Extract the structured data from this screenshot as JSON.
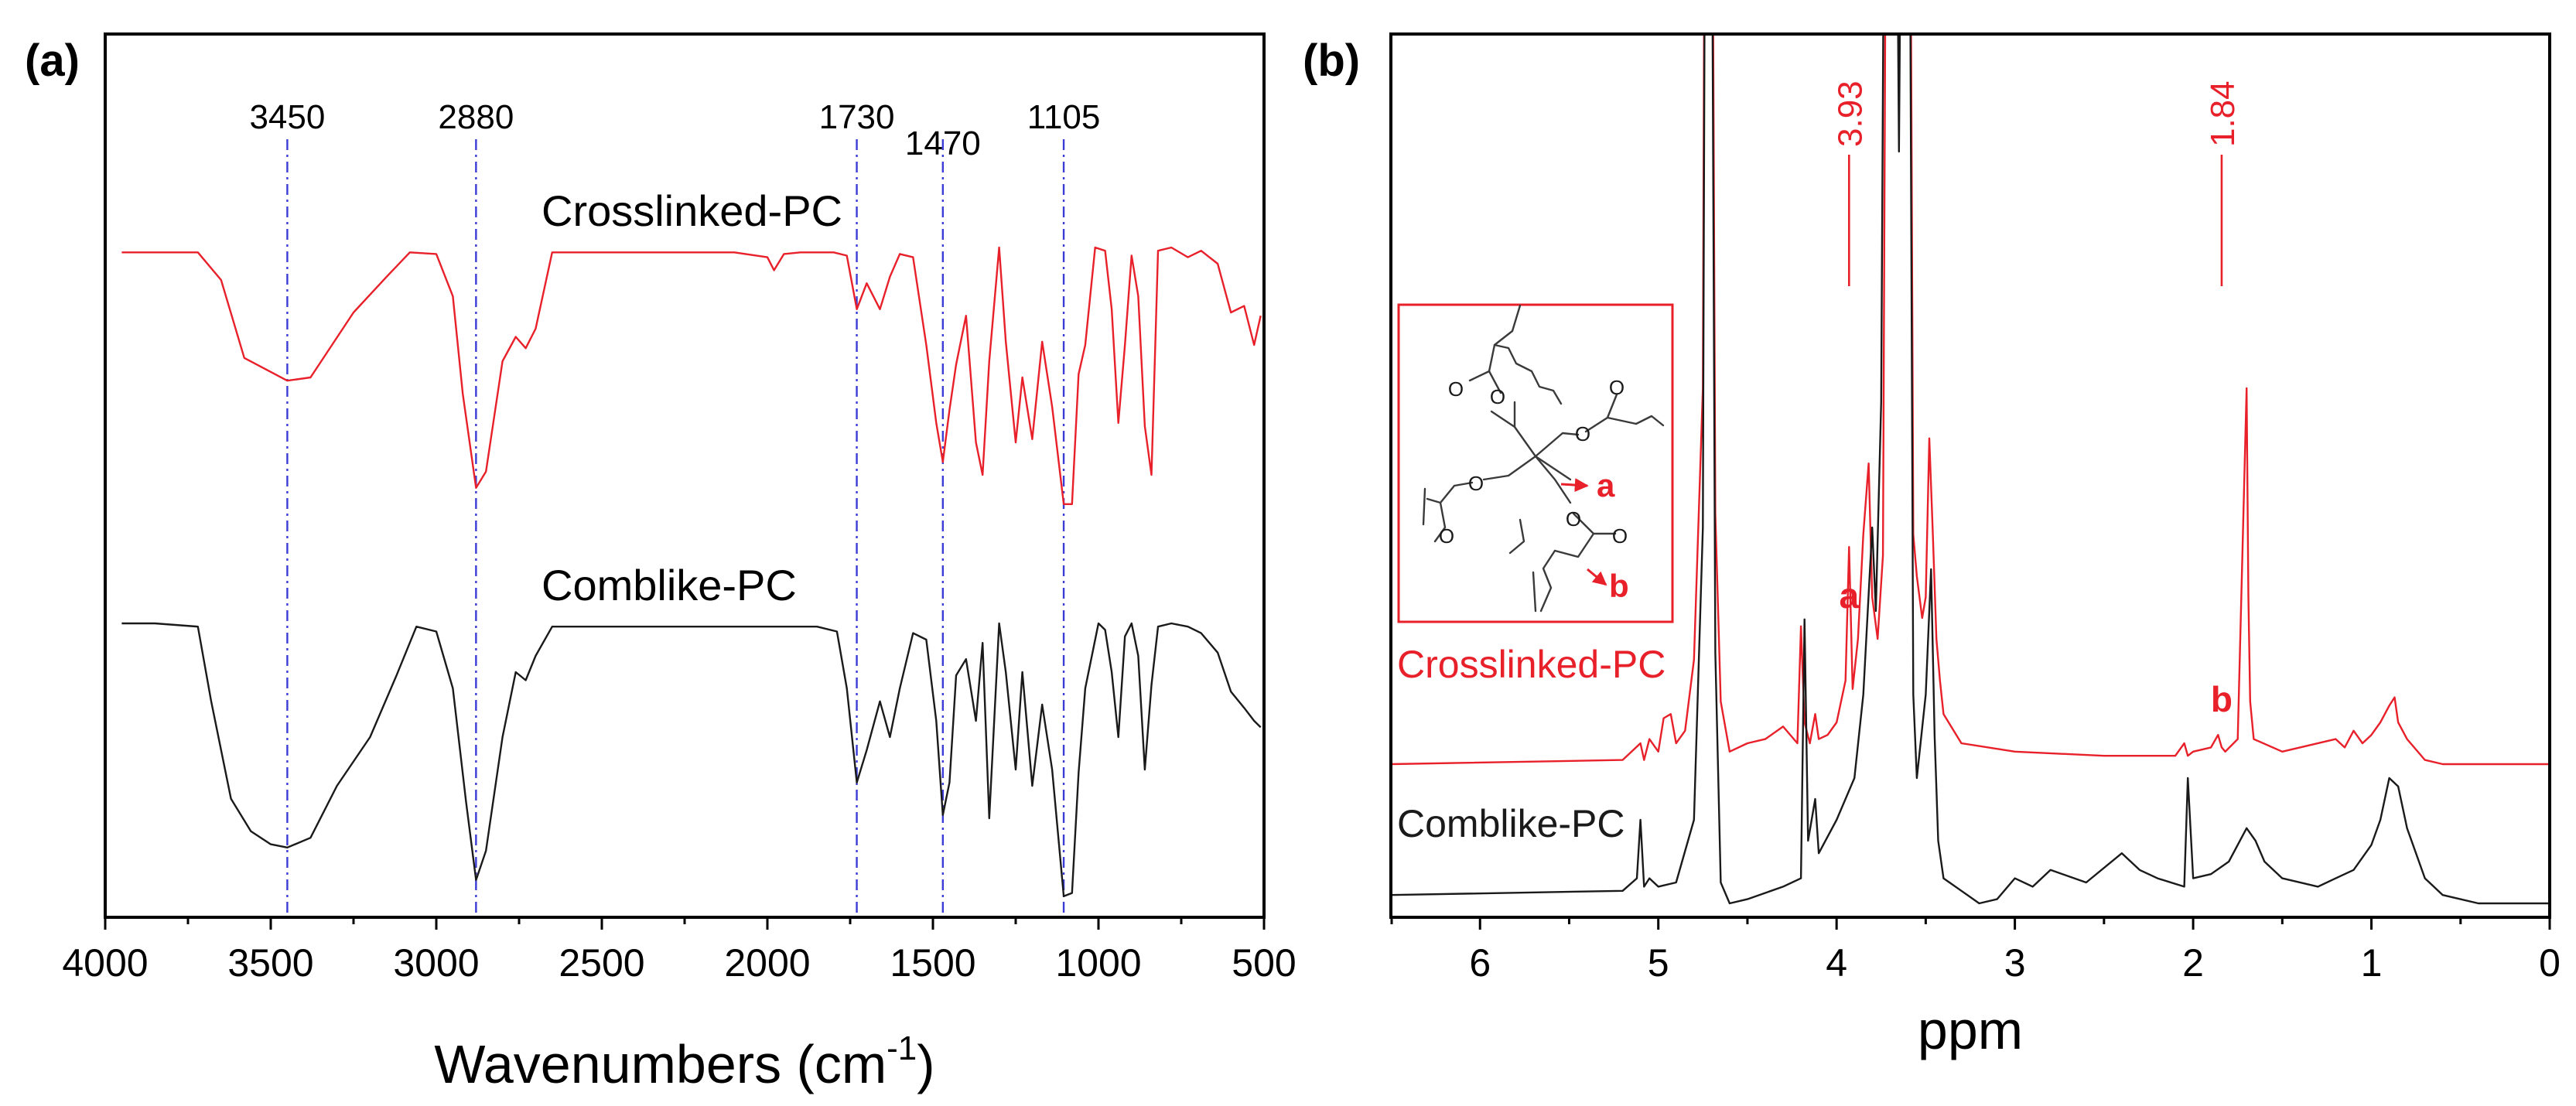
{
  "colors": {
    "crosslinked": "#e8202a",
    "comblike": "#1a1a1a",
    "guide": "#3b3bd6",
    "axis": "#000000"
  },
  "chart_data": [
    {
      "panel_label": "(a)",
      "type": "line",
      "title": "",
      "xlabel_main": "Wavenumbers (cm",
      "xlabel_sup": "-1",
      "xlabel_tail": ")",
      "ylabel": "",
      "xlim": [
        4000,
        500
      ],
      "x_reversed": true,
      "xticks": [
        "4000",
        "3500",
        "3000",
        "2500",
        "2000",
        "1500",
        "1000",
        "500"
      ],
      "xtick_values": [
        4000,
        3500,
        3000,
        2500,
        2000,
        1500,
        1000,
        500
      ],
      "peak_markers": [
        {
          "label": "3450",
          "x": 3450
        },
        {
          "label": "2880",
          "x": 2880
        },
        {
          "label": "1730",
          "x": 1730
        },
        {
          "label": "1470",
          "x": 1470
        },
        {
          "label": "1105",
          "x": 1105
        }
      ],
      "series": [
        {
          "name": "Crosslinked-PC",
          "color": "#e8202a",
          "x": [
            3950,
            3720,
            3650,
            3580,
            3450,
            3380,
            3250,
            3150,
            3080,
            3000,
            2950,
            2920,
            2880,
            2850,
            2800,
            2760,
            2730,
            2700,
            2650,
            2500,
            2300,
            2100,
            2000,
            1980,
            1950,
            1900,
            1850,
            1800,
            1760,
            1730,
            1700,
            1660,
            1630,
            1600,
            1560,
            1520,
            1490,
            1470,
            1450,
            1430,
            1400,
            1370,
            1350,
            1330,
            1300,
            1280,
            1250,
            1230,
            1200,
            1170,
            1140,
            1105,
            1080,
            1060,
            1040,
            1010,
            980,
            960,
            940,
            920,
            900,
            880,
            860,
            840,
            820,
            780,
            730,
            690,
            640,
            600,
            560,
            530,
            510
          ],
          "y": [
            3,
            3,
            20,
            68,
            82,
            80,
            40,
            18,
            3,
            4,
            30,
            90,
            148,
            138,
            70,
            55,
            62,
            50,
            3,
            3,
            3,
            3,
            6,
            14,
            4,
            3,
            3,
            3,
            5,
            38,
            22,
            38,
            18,
            4,
            6,
            60,
            108,
            132,
            100,
            72,
            42,
            120,
            140,
            70,
            0,
            58,
            120,
            80,
            118,
            58,
            98,
            158,
            158,
            78,
            60,
            0,
            2,
            38,
            108,
            60,
            5,
            30,
            110,
            140,
            2,
            0,
            6,
            2,
            10,
            40,
            36,
            60,
            42
          ]
        },
        {
          "name": "Comblike-PC",
          "color": "#1a1a1a",
          "x": [
            3950,
            3850,
            3720,
            3680,
            3620,
            3560,
            3500,
            3450,
            3380,
            3300,
            3200,
            3120,
            3060,
            3000,
            2950,
            2910,
            2880,
            2850,
            2800,
            2760,
            2730,
            2700,
            2650,
            2500,
            2300,
            2100,
            1950,
            1850,
            1790,
            1760,
            1730,
            1700,
            1660,
            1630,
            1600,
            1560,
            1520,
            1490,
            1470,
            1450,
            1430,
            1400,
            1370,
            1350,
            1330,
            1300,
            1280,
            1250,
            1230,
            1200,
            1170,
            1140,
            1105,
            1080,
            1060,
            1040,
            1000,
            980,
            960,
            940,
            920,
            900,
            880,
            860,
            840,
            820,
            780,
            730,
            690,
            640,
            600,
            560,
            530,
            510
          ],
          "y": [
            0,
            0,
            2,
            48,
            108,
            128,
            136,
            138,
            132,
            100,
            70,
            32,
            2,
            5,
            40,
            110,
            158,
            140,
            70,
            30,
            35,
            20,
            2,
            2,
            2,
            2,
            2,
            2,
            5,
            40,
            98,
            78,
            48,
            70,
            40,
            6,
            10,
            60,
            118,
            98,
            32,
            22,
            60,
            12,
            120,
            0,
            30,
            90,
            30,
            100,
            50,
            90,
            168,
            166,
            92,
            40,
            0,
            4,
            30,
            70,
            8,
            0,
            20,
            90,
            38,
            2,
            0,
            2,
            6,
            18,
            42,
            52,
            60,
            64
          ]
        }
      ]
    },
    {
      "panel_label": "(b)",
      "type": "line",
      "title": "",
      "xlabel": "ppm",
      "ylabel": "",
      "xlim": [
        6.5,
        0
      ],
      "x_reversed": true,
      "xticks": [
        "6",
        "5",
        "4",
        "3",
        "2",
        "1",
        "0"
      ],
      "xtick_values": [
        6,
        5,
        4,
        3,
        2,
        1,
        0
      ],
      "peak_markers": [
        {
          "label": "3.93",
          "x": 3.93
        },
        {
          "label": "1.84",
          "x": 1.84
        }
      ],
      "annotations": [
        {
          "label": "a",
          "x": 3.93
        },
        {
          "label": "b",
          "x": 1.84
        }
      ],
      "inset": {
        "label_a": "a",
        "label_b": "b"
      },
      "series": [
        {
          "name": "Crosslinked-PC",
          "color": "#e8202a",
          "x": [
            6.5,
            5.2,
            5.1,
            5.08,
            5.05,
            5.0,
            4.97,
            4.93,
            4.9,
            4.85,
            4.8,
            4.75,
            4.73,
            4.71,
            4.68,
            4.65,
            4.6,
            4.5,
            4.4,
            4.3,
            4.22,
            4.2,
            4.18,
            4.15,
            4.12,
            4.1,
            4.05,
            4.0,
            3.95,
            3.93,
            3.91,
            3.88,
            3.85,
            3.82,
            3.8,
            3.77,
            3.74,
            3.71,
            3.68,
            3.65,
            3.62,
            3.6,
            3.57,
            3.55,
            3.52,
            3.5,
            3.48,
            3.46,
            3.44,
            3.42,
            3.4,
            3.3,
            3.0,
            2.5,
            2.1,
            2.05,
            2.03,
            2.0,
            1.9,
            1.86,
            1.84,
            1.82,
            1.75,
            1.7,
            1.69,
            1.68,
            1.66,
            1.5,
            1.2,
            1.15,
            1.1,
            1.05,
            1.0,
            0.95,
            0.9,
            0.87,
            0.85,
            0.8,
            0.7,
            0.6,
            0.4,
            0.0
          ],
          "y": [
            0.0,
            0.01,
            0.05,
            0.01,
            0.06,
            0.03,
            0.11,
            0.12,
            0.05,
            0.08,
            0.25,
            0.9,
            3.5,
            3.5,
            0.6,
            0.15,
            0.03,
            0.05,
            0.06,
            0.09,
            0.05,
            0.33,
            0.1,
            0.05,
            0.12,
            0.06,
            0.07,
            0.1,
            0.2,
            0.52,
            0.18,
            0.3,
            0.55,
            0.72,
            0.4,
            0.3,
            0.5,
            3.5,
            3.5,
            1.8,
            3.5,
            3.5,
            0.55,
            0.45,
            0.35,
            0.4,
            0.78,
            0.55,
            0.3,
            0.2,
            0.12,
            0.05,
            0.03,
            0.02,
            0.02,
            0.05,
            0.02,
            0.03,
            0.04,
            0.07,
            0.04,
            0.03,
            0.06,
            0.9,
            0.4,
            0.15,
            0.06,
            0.03,
            0.06,
            0.04,
            0.08,
            0.05,
            0.07,
            0.1,
            0.14,
            0.16,
            0.1,
            0.06,
            0.01,
            0.0,
            0.0,
            0.0
          ]
        },
        {
          "name": "Comblike-PC",
          "color": "#1a1a1a",
          "x": [
            6.5,
            5.2,
            5.12,
            5.1,
            5.08,
            5.05,
            5.0,
            4.9,
            4.8,
            4.75,
            4.73,
            4.71,
            4.68,
            4.65,
            4.6,
            4.5,
            4.3,
            4.2,
            4.18,
            4.16,
            4.12,
            4.1,
            4.0,
            3.9,
            3.85,
            3.8,
            3.78,
            3.75,
            3.72,
            3.68,
            3.65,
            3.62,
            3.6,
            3.57,
            3.55,
            3.5,
            3.47,
            3.45,
            3.43,
            3.4,
            3.3,
            3.2,
            3.1,
            3.0,
            2.9,
            2.8,
            2.6,
            2.4,
            2.3,
            2.2,
            2.05,
            2.03,
            2.0,
            1.9,
            1.8,
            1.7,
            1.65,
            1.6,
            1.5,
            1.3,
            1.2,
            1.1,
            1.0,
            0.95,
            0.9,
            0.85,
            0.8,
            0.7,
            0.6,
            0.4,
            0.0
          ],
          "y": [
            0.02,
            0.03,
            0.06,
            0.2,
            0.04,
            0.06,
            0.04,
            0.05,
            0.2,
            0.9,
            3.5,
            3.5,
            0.6,
            0.05,
            0.0,
            0.01,
            0.04,
            0.06,
            0.68,
            0.15,
            0.25,
            0.12,
            0.2,
            0.3,
            0.5,
            0.9,
            0.7,
            1.2,
            3.5,
            3.5,
            1.8,
            3.5,
            3.5,
            0.5,
            0.3,
            0.5,
            0.8,
            0.4,
            0.15,
            0.06,
            0.03,
            0.0,
            0.01,
            0.06,
            0.04,
            0.08,
            0.05,
            0.12,
            0.08,
            0.06,
            0.04,
            0.3,
            0.06,
            0.07,
            0.1,
            0.18,
            0.15,
            0.1,
            0.06,
            0.04,
            0.06,
            0.08,
            0.14,
            0.2,
            0.3,
            0.28,
            0.18,
            0.06,
            0.02,
            0.0,
            0.0
          ]
        }
      ]
    }
  ]
}
